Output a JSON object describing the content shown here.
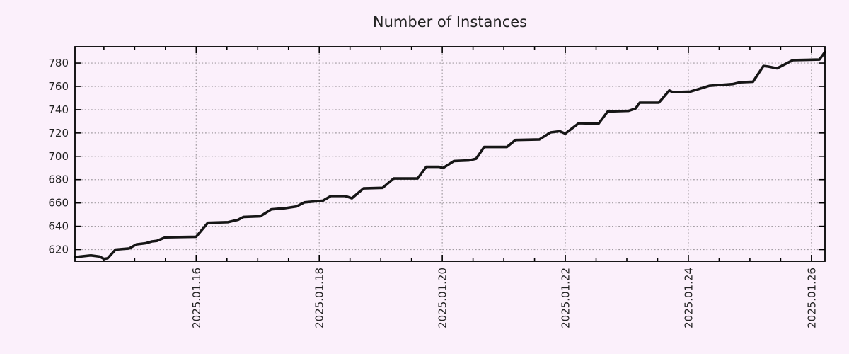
{
  "colors": {
    "background": "#fbf0fb",
    "line": "#161616",
    "grid": "#a39da3",
    "frame": "#000000",
    "text": "#212121",
    "title_text": "#222222"
  },
  "chart_data": {
    "type": "line",
    "title": "Number of Instances",
    "xlabel": "",
    "ylabel": "",
    "x_unit": "days since 2025-01-14 00:00",
    "xlim": [
      0.03,
      12.22
    ],
    "ylim": [
      610,
      794
    ],
    "grid": "dotted",
    "legend": "none",
    "y_ticks": [
      620,
      640,
      660,
      680,
      700,
      720,
      740,
      760,
      780
    ],
    "x_major_ticks": [
      {
        "offset": 2,
        "label": "2025.01.16"
      },
      {
        "offset": 4,
        "label": "2025.01.18"
      },
      {
        "offset": 6,
        "label": "2025.01.20"
      },
      {
        "offset": 8,
        "label": "2025.01.22"
      },
      {
        "offset": 10,
        "label": "2025.01.24"
      },
      {
        "offset": 12,
        "label": "2025.01.26"
      }
    ],
    "x_minor_step": 0.5,
    "x_minor_range": [
      0.5,
      12.0
    ],
    "series": [
      {
        "name": "instances",
        "points": [
          [
            0.03,
            613.5
          ],
          [
            0.29,
            615
          ],
          [
            0.43,
            614
          ],
          [
            0.5,
            612
          ],
          [
            0.56,
            612.5
          ],
          [
            0.69,
            620
          ],
          [
            0.91,
            621
          ],
          [
            1.03,
            624.5
          ],
          [
            1.18,
            625.5
          ],
          [
            1.28,
            627
          ],
          [
            1.36,
            627.5
          ],
          [
            1.5,
            630.5
          ],
          [
            2.0,
            631
          ],
          [
            2.19,
            643
          ],
          [
            2.52,
            643.5
          ],
          [
            2.68,
            645.5
          ],
          [
            2.77,
            648
          ],
          [
            3.04,
            648.5
          ],
          [
            3.22,
            654.5
          ],
          [
            3.44,
            655.5
          ],
          [
            3.63,
            657
          ],
          [
            3.76,
            660.5
          ],
          [
            4.06,
            662
          ],
          [
            4.19,
            666
          ],
          [
            4.42,
            666
          ],
          [
            4.53,
            664
          ],
          [
            4.72,
            672.5
          ],
          [
            5.03,
            673
          ],
          [
            5.21,
            681
          ],
          [
            5.6,
            681
          ],
          [
            5.74,
            691
          ],
          [
            5.95,
            691
          ],
          [
            6.01,
            690
          ],
          [
            6.19,
            696
          ],
          [
            6.43,
            696.5
          ],
          [
            6.55,
            698
          ],
          [
            6.68,
            708
          ],
          [
            7.05,
            708
          ],
          [
            7.19,
            714
          ],
          [
            7.58,
            714.5
          ],
          [
            7.76,
            720.5
          ],
          [
            7.91,
            721.5
          ],
          [
            8.0,
            719.5
          ],
          [
            8.22,
            728.5
          ],
          [
            8.54,
            728
          ],
          [
            8.69,
            738.5
          ],
          [
            9.03,
            739
          ],
          [
            9.14,
            741
          ],
          [
            9.21,
            746
          ],
          [
            9.52,
            746
          ],
          [
            9.69,
            756.5
          ],
          [
            9.75,
            755
          ],
          [
            10.03,
            755.5
          ],
          [
            10.34,
            760.5
          ],
          [
            10.72,
            762
          ],
          [
            10.84,
            763.5
          ],
          [
            11.05,
            764
          ],
          [
            11.22,
            777.5
          ],
          [
            11.3,
            777
          ],
          [
            11.44,
            775.5
          ],
          [
            11.7,
            782.5
          ],
          [
            12.13,
            783
          ],
          [
            12.22,
            789.5
          ]
        ]
      }
    ]
  }
}
